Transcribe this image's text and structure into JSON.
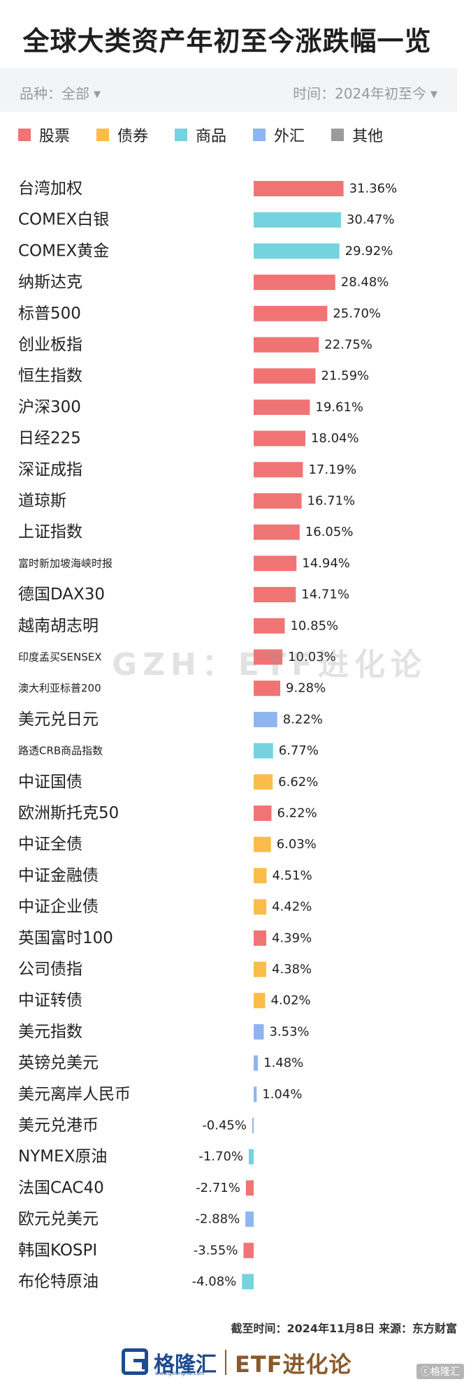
{
  "title": "全球大类资产年初至今涨跌幅一览",
  "filters": {
    "category_label": "品种：全部",
    "time_label": "时间：2024年初至今"
  },
  "legend": [
    {
      "label": "股票",
      "color": "#f07474"
    },
    {
      "label": "债券",
      "color": "#fbbd4a"
    },
    {
      "label": "商品",
      "color": "#74d3de"
    },
    {
      "label": "外汇",
      "color": "#8fb4f2"
    },
    {
      "label": "其他",
      "color": "#9b9b9b"
    }
  ],
  "chart_data": {
    "type": "bar",
    "orientation": "horizontal",
    "value_suffix": "%",
    "categories": [
      "台湾加权",
      "COMEX白银",
      "COMEX黄金",
      "纳斯达克",
      "标普500",
      "创业板指",
      "恒生指数",
      "沪深300",
      "日经225",
      "深证成指",
      "道琼斯",
      "上证指数",
      "富时新加坡海峡时报",
      "德国DAX30",
      "越南胡志明",
      "印度孟买SENSEX",
      "澳大利亚标普200",
      "美元兑日元",
      "路透CRB商品指数",
      "中证国债",
      "欧洲斯托克50",
      "中证全债",
      "中证金融债",
      "中证企业债",
      "英国富时100",
      "公司债指",
      "中证转债",
      "美元指数",
      "英镑兑美元",
      "美元离岸人民币",
      "美元兑港币",
      "NYMEX原油",
      "法国CAC40",
      "欧元兑美元",
      "韩国KOSPI",
      "布伦特原油"
    ],
    "values": [
      31.36,
      30.47,
      29.92,
      28.48,
      25.7,
      22.75,
      21.59,
      19.61,
      18.04,
      17.19,
      16.71,
      16.05,
      14.94,
      14.71,
      10.85,
      10.03,
      9.28,
      8.22,
      6.77,
      6.62,
      6.22,
      6.03,
      4.51,
      4.42,
      4.39,
      4.38,
      4.02,
      3.53,
      1.48,
      1.04,
      -0.45,
      -1.7,
      -2.71,
      -2.88,
      -3.55,
      -4.08
    ],
    "value_labels": [
      "31.36%",
      "30.47%",
      "29.92%",
      "28.48%",
      "25.70%",
      "22.75%",
      "21.59%",
      "19.61%",
      "18.04%",
      "17.19%",
      "16.71%",
      "16.05%",
      "14.94%",
      "14.71%",
      "10.85%",
      "10.03%",
      "9.28%",
      "8.22%",
      "6.77%",
      "6.62%",
      "6.22%",
      "6.03%",
      "4.51%",
      "4.42%",
      "4.39%",
      "4.38%",
      "4.02%",
      "3.53%",
      "1.48%",
      "1.04%",
      "-0.45%",
      "-1.70%",
      "-2.71%",
      "-2.88%",
      "-3.55%",
      "-4.08%"
    ],
    "kinds": [
      "股票",
      "商品",
      "商品",
      "股票",
      "股票",
      "股票",
      "股票",
      "股票",
      "股票",
      "股票",
      "股票",
      "股票",
      "股票",
      "股票",
      "股票",
      "股票",
      "股票",
      "外汇",
      "商品",
      "债券",
      "股票",
      "债券",
      "债券",
      "债券",
      "股票",
      "债券",
      "债券",
      "外汇",
      "外汇",
      "外汇",
      "外汇",
      "商品",
      "股票",
      "外汇",
      "股票",
      "商品"
    ],
    "small_label_categories": [
      "富时新加坡海峡时报",
      "印度孟买SENSEX",
      "澳大利亚标普200",
      "路透CRB商品指数"
    ]
  },
  "footer": {
    "note": "截至时间：2024年11月8日 来源：东方财富",
    "brand_name": "格隆汇",
    "brand_url": "www.gelonghui.com",
    "brand_etf": "ETF进化论",
    "corner": "ⓒ格隆汇"
  },
  "watermark": "GZH：ETF进化论"
}
